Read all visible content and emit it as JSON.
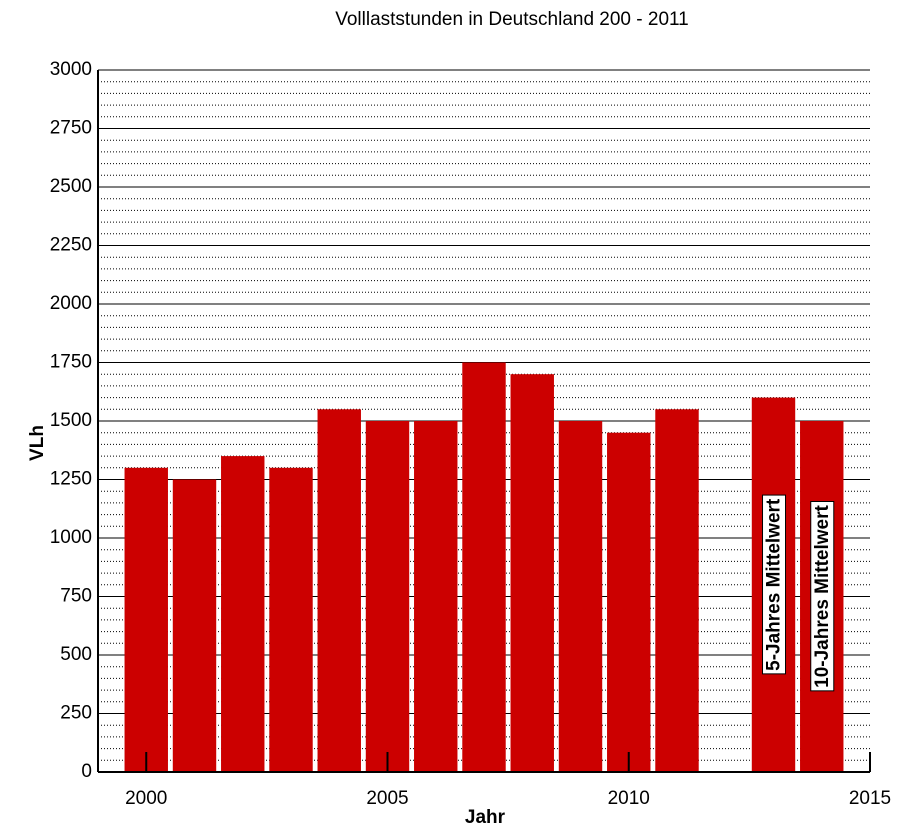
{
  "chart_data": {
    "type": "bar",
    "title": "Volllaststunden in Deutschland 200 - 2011",
    "x_label": "Jahr",
    "y_label": "VLh",
    "x": [
      2000,
      2001,
      2002,
      2003,
      2004,
      2005,
      2006,
      2007,
      2008,
      2009,
      2010,
      2011,
      2013,
      2014
    ],
    "values": [
      1300,
      1250,
      1350,
      1300,
      1550,
      1500,
      1500,
      1750,
      1700,
      1500,
      1450,
      1550,
      1600,
      1500
    ],
    "color": "#cc0000",
    "annotations": [
      {
        "x": 2013,
        "text": "5-Jahres Mittelwert"
      },
      {
        "x": 2014,
        "text": "10-Jahres Mittelwert"
      }
    ],
    "xlim": [
      1999,
      2015
    ],
    "xticks": [
      2000,
      2005,
      2010,
      2015
    ],
    "ylim": [
      0,
      3000
    ],
    "yticks": [
      0,
      250,
      500,
      750,
      1000,
      1250,
      1500,
      1750,
      2000,
      2250,
      2500,
      2750,
      3000
    ],
    "grid": true,
    "minor_grid_per_major": 5
  }
}
